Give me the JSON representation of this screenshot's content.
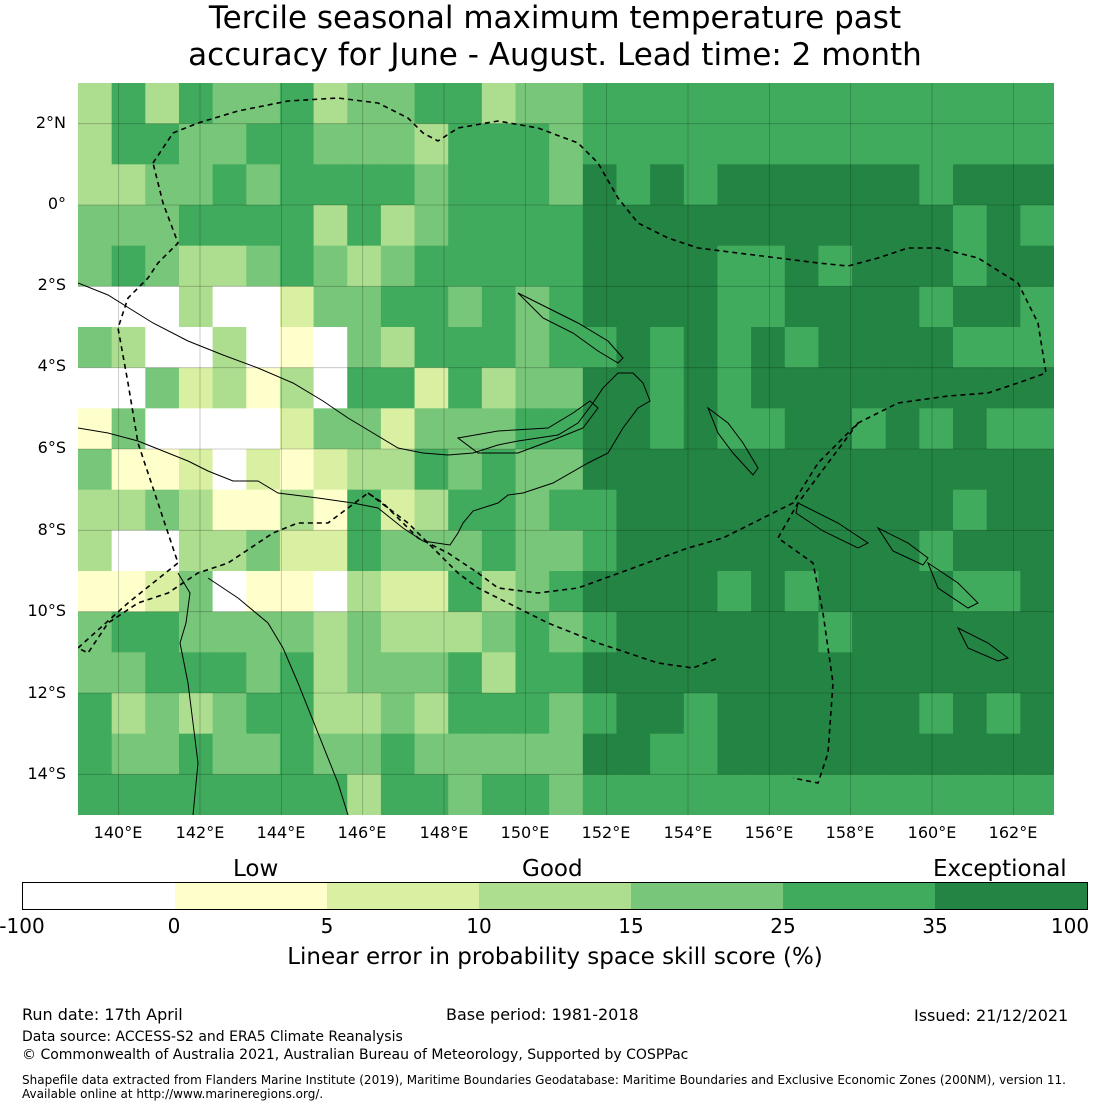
{
  "title_line1": "Tercile seasonal maximum temperature past",
  "title_line2": "accuracy for June - August. Lead time: 2 month",
  "map": {
    "lat_labels": [
      "2°N",
      "0°",
      "2°S",
      "4°S",
      "6°S",
      "8°S",
      "10°S",
      "12°S",
      "14°S"
    ],
    "lon_labels": [
      "140°E",
      "142°E",
      "144°E",
      "146°E",
      "148°E",
      "150°E",
      "152°E",
      "154°E",
      "156°E",
      "158°E",
      "160°E",
      "162°E"
    ],
    "lat_range": [
      -15,
      3
    ],
    "lon_range": [
      139,
      163
    ]
  },
  "legend": {
    "categories": [
      "Low",
      "Good",
      "Exceptional"
    ],
    "bounds": [
      "-100",
      "0",
      "5",
      "10",
      "15",
      "25",
      "35",
      "100"
    ],
    "colors": [
      "#ffffff",
      "#ffffcc",
      "#d9f0a3",
      "#addd8e",
      "#78c679",
      "#41ab5d",
      "#238443"
    ],
    "label": "Linear error in probability space skill score (%)"
  },
  "footer": {
    "run_date": "Run date: 17th April",
    "base_period": "Base period: 1981-2018",
    "issued": "Issued: 21/12/2021",
    "data_source": "Data source: ACCESS-S2 and ERA5 Climate Reanalysis",
    "copyright": "© Commonwealth of Australia 2021, Australian Bureau of Meteorology, Supported by COSPPac",
    "shapefile_line1": "Shapefile data extracted from Flanders Marine Institute (2019), Maritime Boundaries Geodatabase: Maritime Boundaries and Exclusive Economic Zones (200NM), version 11.",
    "shapefile_line2": "Available online at http://www.marineregions.org/."
  }
}
